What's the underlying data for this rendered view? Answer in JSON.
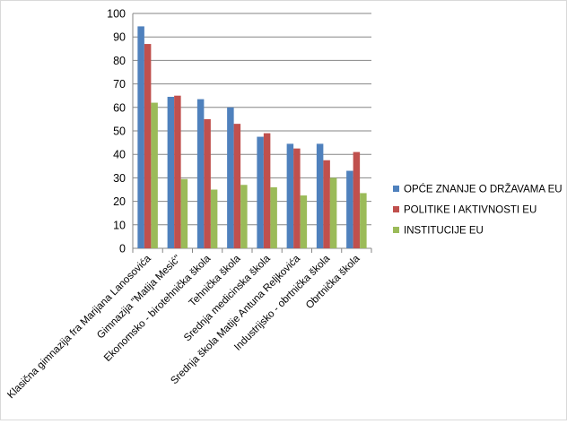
{
  "chart_data": {
    "type": "bar",
    "title": "",
    "xlabel": "",
    "ylabel": "",
    "ylim": [
      0,
      100
    ],
    "yticks": [
      0,
      10,
      20,
      30,
      40,
      50,
      60,
      70,
      80,
      90,
      100
    ],
    "grid": true,
    "legend_position": "right",
    "categories": [
      "Klasična gimnazija fra Marijana Lanosovića",
      "Gimnazija \"Matija Mesić\"",
      "Ekonomsko - birotehnička škola",
      "Tehnička škola",
      "Srednja medicinska škola",
      "Srednja škola Matije Antuna Reljkovića",
      "Industrijsko - obrtnička škola",
      "Obrtnička škola"
    ],
    "series": [
      {
        "name": "OPĆE ZNANJE O DRŽAVAMA EU",
        "color": "#4f81bd",
        "values": [
          94.5,
          64.5,
          63.5,
          60,
          47.5,
          44.5,
          44.5,
          33
        ]
      },
      {
        "name": "POLITIKE I AKTIVNOSTI EU",
        "color": "#c0504d",
        "values": [
          87,
          65,
          55,
          53,
          49,
          42.5,
          37.5,
          41
        ]
      },
      {
        "name": "INSTITUCIJE EU",
        "color": "#9bbb59",
        "values": [
          62,
          29.5,
          25,
          27,
          26,
          22.5,
          30,
          23.5
        ]
      }
    ]
  }
}
